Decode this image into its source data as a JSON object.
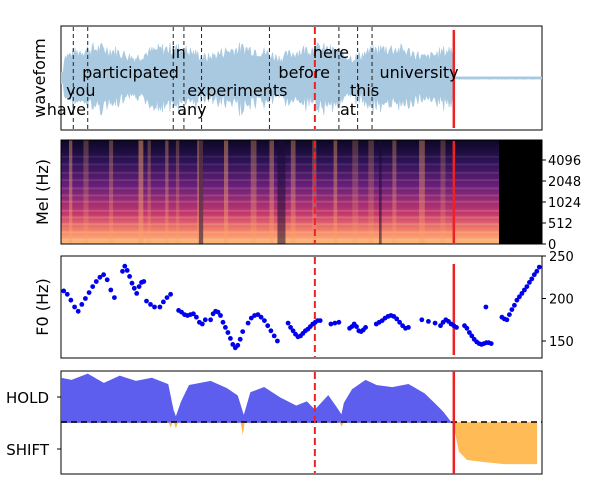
{
  "chart_data": [
    {
      "type": "area",
      "panel": "waveform",
      "ylabel": "waveform",
      "word_boundaries_s": [
        0.23,
        0.5,
        2.1,
        2.3,
        2.63,
        3.9,
        5.2,
        5.55,
        5.82
      ],
      "words": [
        {
          "text": "have",
          "t": 0.1
        },
        {
          "text": "you",
          "t": 0.37
        },
        {
          "text": "participated",
          "t": 1.3
        },
        {
          "text": "in",
          "t": 2.2
        },
        {
          "text": "any",
          "t": 2.45
        },
        {
          "text": "experiments",
          "t": 3.3
        },
        {
          "text": "before",
          "t": 4.55
        },
        {
          "text": "here",
          "t": 5.05
        },
        {
          "text": "at",
          "t": 5.37
        },
        {
          "text": "this",
          "t": 5.68
        },
        {
          "text": "university",
          "t": 6.7
        }
      ],
      "current_time_s": 4.75,
      "end_time_s": 7.35,
      "line_colors": {
        "current": "#ee2222",
        "end": "#ee2222",
        "boundary": "#222222"
      },
      "wave_color": "#a9c9e1"
    },
    {
      "type": "heatmap",
      "panel": "mel",
      "ylabel": "Mel (Hz)",
      "yticks": [
        "0",
        "512",
        "1024",
        "2048",
        "4096"
      ],
      "colormap": "magma",
      "current_time_s": 4.75,
      "end_time_s": 7.35
    },
    {
      "type": "scatter",
      "panel": "f0",
      "ylabel": "F0 (Hz)",
      "yticks": [
        "150",
        "200",
        "250"
      ],
      "ylim": [
        130,
        250
      ],
      "color": "#0000ee",
      "current_time_s": 4.75,
      "end_time_s": 7.35,
      "segments": [
        {
          "t0": 0.05,
          "t1": 1.0,
          "vals": [
            209,
            205,
            198,
            190,
            185,
            193,
            200,
            207,
            214,
            220,
            225,
            228,
            222,
            210,
            201
          ]
        },
        {
          "t0": 1.15,
          "t1": 1.55,
          "vals": [
            232,
            238,
            233,
            226,
            218,
            212,
            206,
            214,
            219,
            220
          ]
        },
        {
          "t0": 1.6,
          "t1": 1.75,
          "vals": [
            197,
            193,
            190
          ]
        },
        {
          "t0": 1.85,
          "t1": 2.05,
          "vals": [
            190,
            196,
            201,
            205
          ]
        },
        {
          "t0": 2.2,
          "t1": 2.7,
          "vals": [
            186,
            184,
            181,
            180,
            181,
            182,
            178,
            172,
            170,
            175
          ]
        },
        {
          "t0": 2.8,
          "t1": 3.4,
          "vals": [
            175,
            182,
            185,
            184,
            180,
            172,
            166,
            160,
            153,
            146,
            142,
            145,
            152,
            161
          ]
        },
        {
          "t0": 3.5,
          "t1": 4.05,
          "vals": [
            171,
            177,
            180,
            181,
            178,
            174,
            168,
            162,
            156,
            150
          ]
        },
        {
          "t0": 4.25,
          "t1": 4.85,
          "vals": [
            171,
            166,
            162,
            158,
            155,
            156,
            159,
            162,
            164,
            167,
            170,
            172,
            174,
            174
          ]
        },
        {
          "t0": 5.05,
          "t1": 5.2,
          "vals": [
            170,
            171,
            172
          ]
        },
        {
          "t0": 5.4,
          "t1": 5.7,
          "vals": [
            165,
            167,
            170,
            167,
            162,
            161,
            163,
            166
          ]
        },
        {
          "t0": 5.9,
          "t1": 6.5,
          "vals": [
            170,
            172,
            174,
            177,
            179,
            180,
            179,
            176,
            172,
            168,
            165,
            166
          ]
        },
        {
          "t0": 6.75,
          "t1": 7.0,
          "vals": [
            175,
            173,
            171
          ]
        },
        {
          "t0": 7.1,
          "t1": 7.4,
          "vals": [
            168,
            172,
            175,
            173,
            170,
            168,
            166
          ]
        },
        {
          "t0": 7.55,
          "t1": 8.05,
          "vals": [
            168,
            165,
            160,
            156,
            152,
            149,
            147,
            146,
            147,
            148,
            148,
            147
          ]
        },
        {
          "t0": 7.95,
          "t1": 8.05,
          "vals": [
            190
          ]
        },
        {
          "t0": 8.25,
          "t1": 8.95,
          "vals": [
            178,
            176,
            175,
            181,
            187,
            192,
            198,
            202,
            206,
            210,
            214,
            219,
            223,
            228,
            232,
            237
          ]
        }
      ]
    },
    {
      "type": "area",
      "panel": "turn-taking",
      "ytick_labels": [
        "HOLD",
        "SHIFT"
      ],
      "hold_color": "#5555ee",
      "shift_color": "#ffb84d",
      "threshold": 0.5,
      "current_time_s": 4.75,
      "end_time_s": 7.35,
      "hold_profile": [
        [
          0.0,
          0.93
        ],
        [
          0.2,
          0.91
        ],
        [
          0.5,
          0.97
        ],
        [
          0.8,
          0.88
        ],
        [
          1.1,
          0.95
        ],
        [
          1.4,
          0.9
        ],
        [
          1.7,
          0.93
        ],
        [
          2.0,
          0.87
        ],
        [
          2.1,
          0.62
        ],
        [
          2.15,
          0.55
        ],
        [
          2.25,
          0.7
        ],
        [
          2.4,
          0.86
        ],
        [
          2.8,
          0.9
        ],
        [
          3.1,
          0.83
        ],
        [
          3.3,
          0.76
        ],
        [
          3.42,
          0.56
        ],
        [
          3.55,
          0.79
        ],
        [
          3.8,
          0.84
        ],
        [
          4.1,
          0.74
        ],
        [
          4.4,
          0.66
        ],
        [
          4.6,
          0.7
        ],
        [
          4.75,
          0.62
        ],
        [
          5.0,
          0.76
        ],
        [
          5.15,
          0.65
        ],
        [
          5.25,
          0.57
        ],
        [
          5.3,
          0.69
        ],
        [
          5.45,
          0.82
        ],
        [
          5.7,
          0.91
        ],
        [
          5.9,
          0.86
        ],
        [
          6.2,
          0.84
        ],
        [
          6.5,
          0.87
        ],
        [
          6.8,
          0.78
        ],
        [
          7.0,
          0.68
        ],
        [
          7.15,
          0.6
        ],
        [
          7.3,
          0.5
        ],
        [
          7.4,
          0.48
        ]
      ],
      "shift_dips": [
        [
          2.05,
          0.45
        ],
        [
          2.15,
          0.44
        ],
        [
          3.4,
          0.38
        ],
        [
          5.25,
          0.46
        ]
      ],
      "shift_profile": [
        [
          7.35,
          0.48
        ],
        [
          7.45,
          0.22
        ],
        [
          7.6,
          0.14
        ],
        [
          7.9,
          0.12
        ],
        [
          8.3,
          0.1
        ],
        [
          8.6,
          0.1
        ],
        [
          8.9,
          0.1
        ]
      ]
    }
  ]
}
